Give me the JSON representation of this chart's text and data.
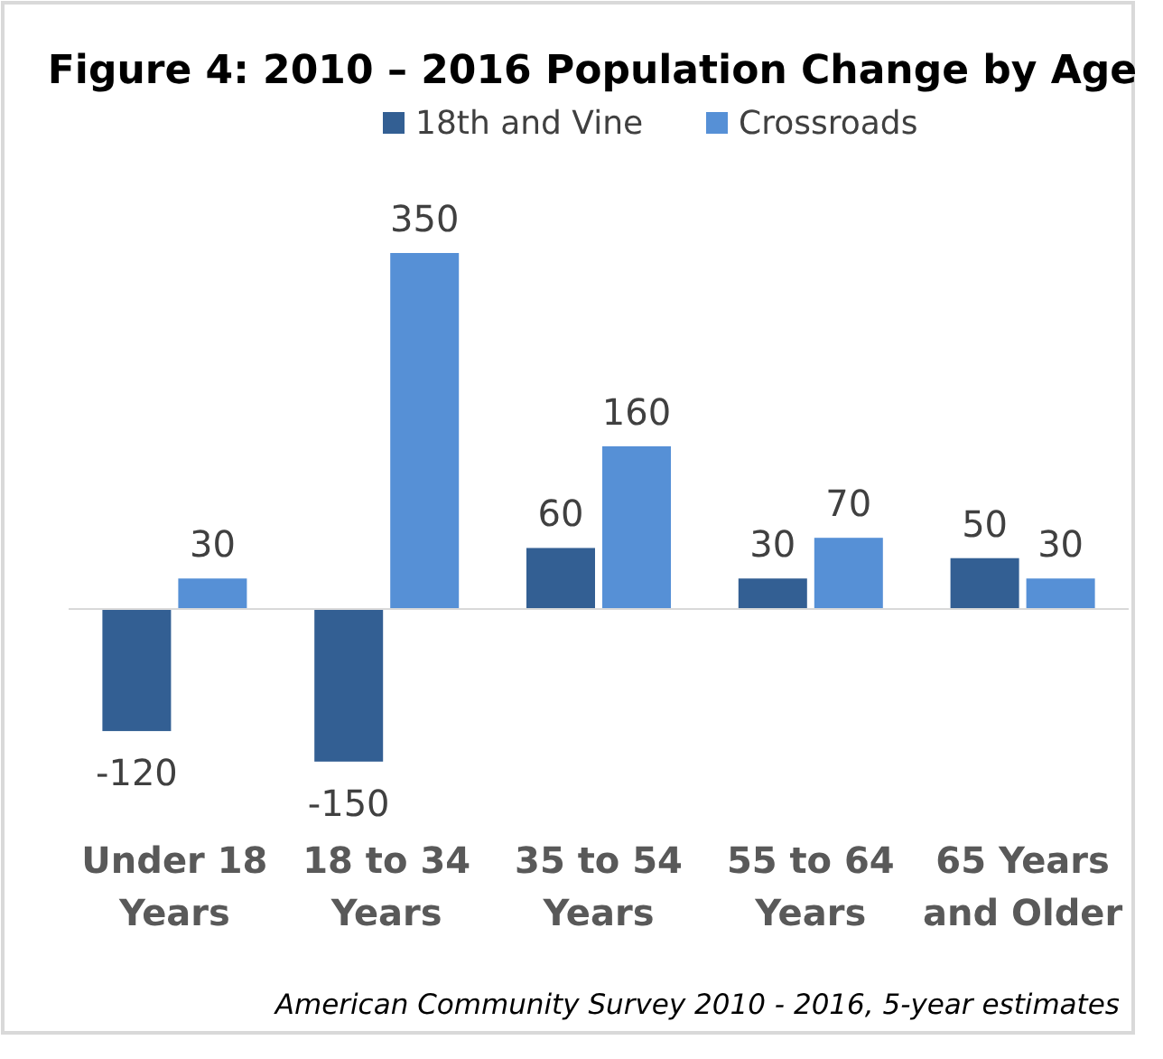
{
  "chart_data": {
    "type": "bar",
    "title": "Figure 4: 2010 – 2016 Population Change by Age",
    "categories": [
      "Under 18 Years",
      "18 to 34 Years",
      "35 to 54 Years",
      "55 to 64 Years",
      "65 Years and Older"
    ],
    "series": [
      {
        "name": "18th and Vine",
        "color": "#335f93",
        "values": [
          -120,
          -150,
          60,
          30,
          50
        ]
      },
      {
        "name": "Crossroads",
        "color": "#5690d6",
        "values": [
          30,
          350,
          160,
          70,
          30
        ]
      }
    ],
    "data_labels": true,
    "legend": "top",
    "annotations": [
      "American Community Survey 2010 - 2016, 5-year estimates"
    ]
  }
}
